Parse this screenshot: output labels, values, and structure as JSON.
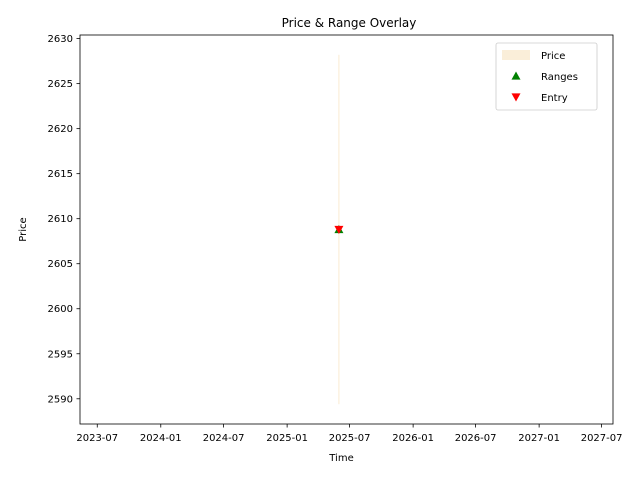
{
  "chart_data": {
    "type": "scatter",
    "title": "Price & Range Overlay",
    "xlabel": "Time",
    "ylabel": "Price",
    "x_axis_type": "date",
    "xlim": [
      "2023-05-12",
      "2027-08-03"
    ],
    "ylim": [
      2587.2,
      2630.4
    ],
    "x_ticks": [
      "2023-07",
      "2024-01",
      "2024-07",
      "2025-01",
      "2025-07",
      "2026-01",
      "2026-07",
      "2027-01",
      "2027-07"
    ],
    "y_ticks": [
      2590,
      2595,
      2600,
      2605,
      2610,
      2615,
      2620,
      2625,
      2630
    ],
    "grid": false,
    "legend_position": "top-right",
    "series": [
      {
        "name": "Price",
        "kind": "band",
        "color": "#f5deb3",
        "x": "2025-05-31",
        "y_low": 2589.4,
        "y_high": 2628.2
      },
      {
        "name": "Ranges",
        "kind": "marker",
        "marker": "triangle-up",
        "color": "#008000",
        "points": [
          {
            "x": "2025-05-31",
            "y": 2608.8
          }
        ]
      },
      {
        "name": "Entry",
        "kind": "marker",
        "marker": "triangle-down",
        "color": "#ff0000",
        "points": [
          {
            "x": "2025-05-31",
            "y": 2608.8
          }
        ]
      }
    ]
  }
}
